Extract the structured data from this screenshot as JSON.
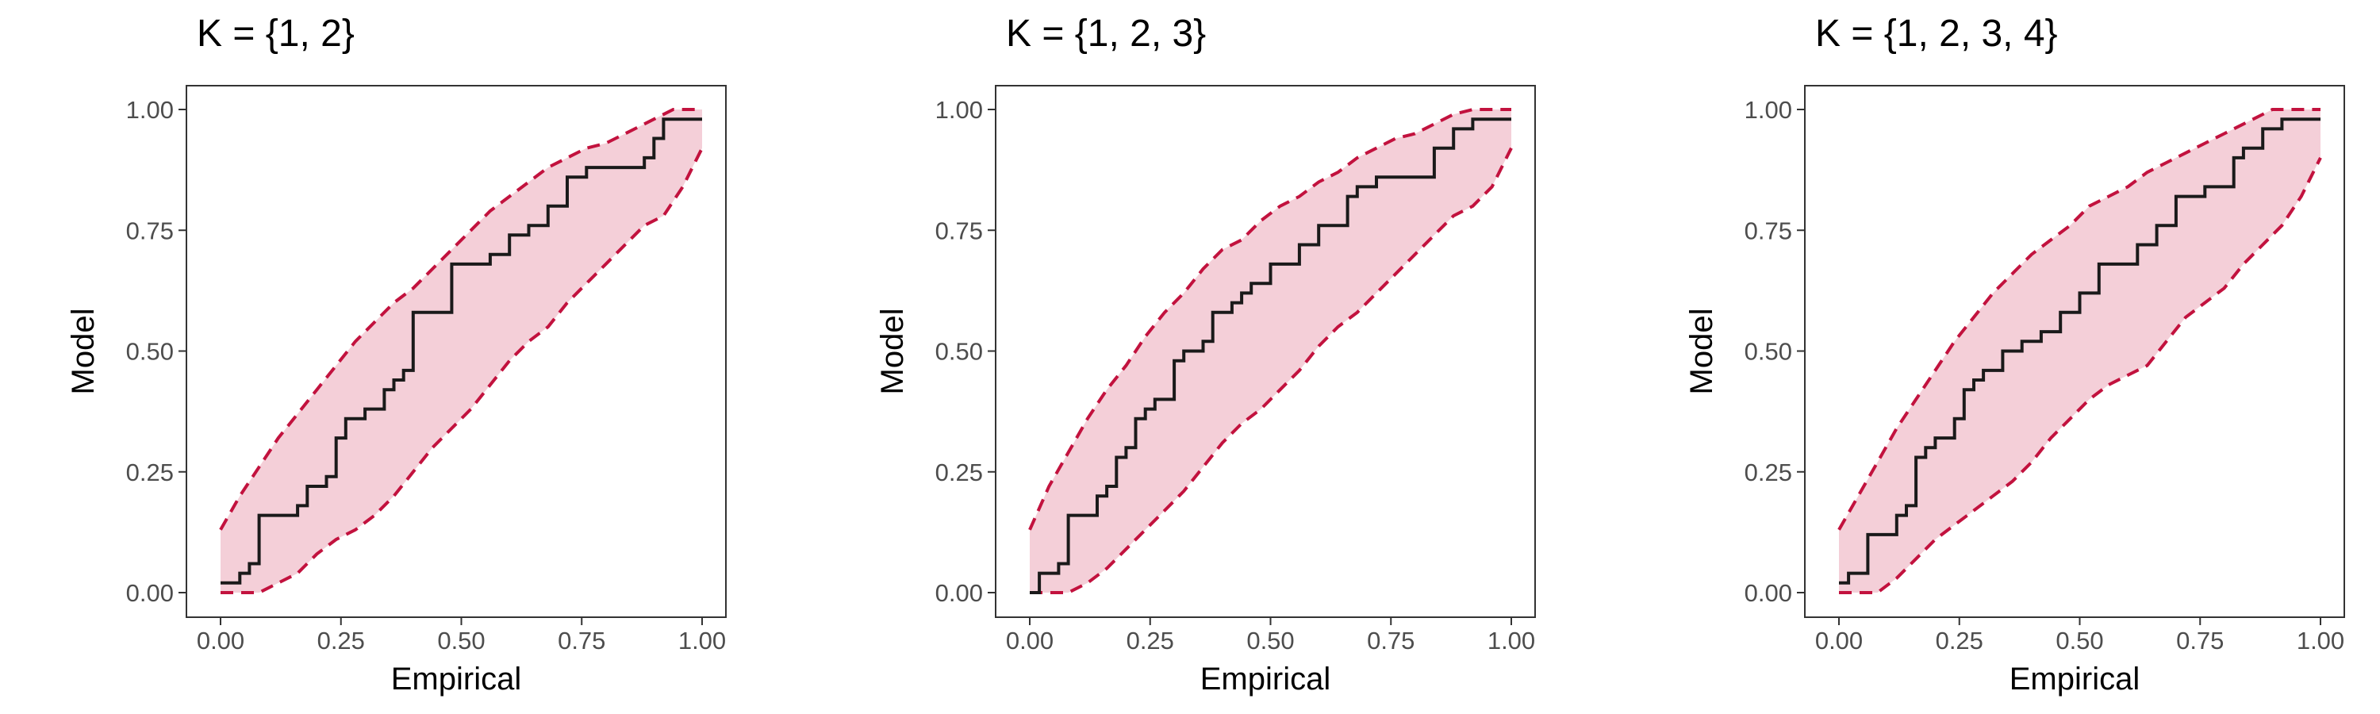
{
  "colors": {
    "band_fill": "#f4cfd8",
    "band_edge": "#c2123e",
    "step_line": "#1a1a1a",
    "axis_text": "#4d4d4d",
    "frame": "#333333"
  },
  "chart_data": [
    {
      "type": "line",
      "title": "K = {1, 2}",
      "xlabel": "Empirical",
      "ylabel": "Model",
      "xlim": [
        0,
        1
      ],
      "ylim": [
        0,
        1
      ],
      "grid": false,
      "xticks": [
        "0.00",
        "0.25",
        "0.50",
        "0.75",
        "1.00"
      ],
      "yticks": [
        "0.00",
        "0.25",
        "0.50",
        "0.75",
        "1.00"
      ],
      "band_upper": {
        "x": [
          0,
          0.04,
          0.08,
          0.12,
          0.16,
          0.2,
          0.24,
          0.28,
          0.32,
          0.36,
          0.4,
          0.44,
          0.48,
          0.52,
          0.56,
          0.6,
          0.64,
          0.68,
          0.72,
          0.76,
          0.8,
          0.84,
          0.88,
          0.9,
          0.94,
          1.0
        ],
        "y": [
          0.13,
          0.2,
          0.26,
          0.32,
          0.37,
          0.42,
          0.47,
          0.52,
          0.56,
          0.6,
          0.63,
          0.67,
          0.71,
          0.75,
          0.79,
          0.82,
          0.85,
          0.88,
          0.9,
          0.92,
          0.93,
          0.95,
          0.97,
          0.98,
          1.0,
          1.0
        ]
      },
      "band_lower": {
        "x": [
          0,
          0.04,
          0.08,
          0.12,
          0.16,
          0.2,
          0.24,
          0.28,
          0.32,
          0.36,
          0.4,
          0.44,
          0.48,
          0.52,
          0.56,
          0.6,
          0.64,
          0.68,
          0.72,
          0.76,
          0.8,
          0.84,
          0.88,
          0.92,
          0.96,
          1.0
        ],
        "y": [
          0.0,
          0.0,
          0.0,
          0.02,
          0.04,
          0.08,
          0.11,
          0.13,
          0.16,
          0.2,
          0.25,
          0.3,
          0.34,
          0.38,
          0.43,
          0.48,
          0.52,
          0.55,
          0.6,
          0.64,
          0.68,
          0.72,
          0.76,
          0.78,
          0.84,
          0.92
        ]
      },
      "step": {
        "x": [
          0,
          0.04,
          0.06,
          0.08,
          0.16,
          0.18,
          0.22,
          0.24,
          0.26,
          0.3,
          0.34,
          0.36,
          0.38,
          0.4,
          0.42,
          0.48,
          0.52,
          0.56,
          0.6,
          0.64,
          0.68,
          0.72,
          0.76,
          0.86,
          0.88,
          0.9,
          0.92,
          1.0
        ],
        "y": [
          0.02,
          0.04,
          0.06,
          0.16,
          0.18,
          0.22,
          0.24,
          0.32,
          0.36,
          0.38,
          0.42,
          0.44,
          0.46,
          0.58,
          0.58,
          0.68,
          0.68,
          0.7,
          0.74,
          0.76,
          0.8,
          0.86,
          0.88,
          0.88,
          0.9,
          0.94,
          0.98,
          0.98
        ]
      }
    },
    {
      "type": "line",
      "title": "K = {1, 2, 3}",
      "xlabel": "Empirical",
      "ylabel": "Model",
      "xlim": [
        0,
        1
      ],
      "ylim": [
        0,
        1
      ],
      "grid": false,
      "xticks": [
        "0.00",
        "0.25",
        "0.50",
        "0.75",
        "1.00"
      ],
      "yticks": [
        "0.00",
        "0.25",
        "0.50",
        "0.75",
        "1.00"
      ],
      "band_upper": {
        "x": [
          0,
          0.04,
          0.08,
          0.12,
          0.16,
          0.2,
          0.24,
          0.28,
          0.32,
          0.36,
          0.4,
          0.44,
          0.48,
          0.52,
          0.56,
          0.6,
          0.64,
          0.68,
          0.72,
          0.76,
          0.8,
          0.84,
          0.88,
          0.92,
          0.96,
          1.0
        ],
        "y": [
          0.13,
          0.22,
          0.29,
          0.36,
          0.42,
          0.47,
          0.53,
          0.58,
          0.62,
          0.67,
          0.71,
          0.73,
          0.77,
          0.8,
          0.82,
          0.85,
          0.87,
          0.9,
          0.92,
          0.94,
          0.95,
          0.97,
          0.99,
          1.0,
          1.0,
          1.0
        ]
      },
      "band_lower": {
        "x": [
          0,
          0.04,
          0.08,
          0.12,
          0.16,
          0.2,
          0.24,
          0.28,
          0.32,
          0.36,
          0.4,
          0.44,
          0.48,
          0.52,
          0.56,
          0.6,
          0.64,
          0.68,
          0.72,
          0.76,
          0.8,
          0.84,
          0.88,
          0.92,
          0.96,
          1.0
        ],
        "y": [
          0.0,
          0.0,
          0.0,
          0.02,
          0.05,
          0.09,
          0.13,
          0.17,
          0.21,
          0.26,
          0.31,
          0.35,
          0.38,
          0.42,
          0.46,
          0.51,
          0.55,
          0.58,
          0.62,
          0.66,
          0.7,
          0.74,
          0.78,
          0.8,
          0.84,
          0.92
        ]
      },
      "step": {
        "x": [
          0,
          0.02,
          0.06,
          0.08,
          0.14,
          0.16,
          0.18,
          0.2,
          0.22,
          0.24,
          0.26,
          0.3,
          0.32,
          0.36,
          0.38,
          0.42,
          0.44,
          0.46,
          0.5,
          0.56,
          0.6,
          0.66,
          0.68,
          0.72,
          0.84,
          0.88,
          0.92,
          1.0
        ],
        "y": [
          0.0,
          0.04,
          0.06,
          0.16,
          0.2,
          0.22,
          0.28,
          0.3,
          0.36,
          0.38,
          0.4,
          0.48,
          0.5,
          0.52,
          0.58,
          0.6,
          0.62,
          0.64,
          0.68,
          0.72,
          0.76,
          0.82,
          0.84,
          0.86,
          0.92,
          0.96,
          0.98,
          0.98
        ]
      }
    },
    {
      "type": "line",
      "title": "K = {1, 2, 3, 4}",
      "xlabel": "Empirical",
      "ylabel": "Model",
      "xlim": [
        0,
        1
      ],
      "ylim": [
        0,
        1
      ],
      "grid": false,
      "xticks": [
        "0.00",
        "0.25",
        "0.50",
        "0.75",
        "1.00"
      ],
      "yticks": [
        "0.00",
        "0.25",
        "0.50",
        "0.75",
        "1.00"
      ],
      "band_upper": {
        "x": [
          0,
          0.04,
          0.08,
          0.12,
          0.16,
          0.2,
          0.24,
          0.28,
          0.32,
          0.36,
          0.4,
          0.44,
          0.48,
          0.52,
          0.56,
          0.6,
          0.64,
          0.68,
          0.72,
          0.76,
          0.8,
          0.84,
          0.88,
          0.9,
          0.94,
          1.0
        ],
        "y": [
          0.13,
          0.2,
          0.27,
          0.34,
          0.4,
          0.46,
          0.52,
          0.57,
          0.62,
          0.66,
          0.7,
          0.73,
          0.76,
          0.8,
          0.82,
          0.84,
          0.87,
          0.89,
          0.91,
          0.93,
          0.95,
          0.97,
          0.99,
          1.0,
          1.0,
          1.0
        ]
      },
      "band_lower": {
        "x": [
          0,
          0.04,
          0.08,
          0.12,
          0.16,
          0.2,
          0.24,
          0.28,
          0.32,
          0.36,
          0.4,
          0.44,
          0.48,
          0.52,
          0.56,
          0.6,
          0.64,
          0.68,
          0.72,
          0.76,
          0.8,
          0.84,
          0.88,
          0.92,
          0.96,
          1.0
        ],
        "y": [
          0.0,
          0.0,
          0.0,
          0.03,
          0.07,
          0.11,
          0.14,
          0.17,
          0.2,
          0.23,
          0.27,
          0.32,
          0.36,
          0.4,
          0.43,
          0.45,
          0.47,
          0.52,
          0.57,
          0.6,
          0.63,
          0.68,
          0.72,
          0.76,
          0.82,
          0.9
        ]
      },
      "step": {
        "x": [
          0,
          0.02,
          0.06,
          0.1,
          0.12,
          0.14,
          0.16,
          0.18,
          0.2,
          0.24,
          0.26,
          0.28,
          0.3,
          0.34,
          0.38,
          0.42,
          0.46,
          0.5,
          0.54,
          0.62,
          0.66,
          0.7,
          0.76,
          0.82,
          0.84,
          0.88,
          0.92,
          0.96,
          1.0
        ],
        "y": [
          0.02,
          0.04,
          0.12,
          0.12,
          0.16,
          0.18,
          0.28,
          0.3,
          0.32,
          0.36,
          0.42,
          0.44,
          0.46,
          0.5,
          0.52,
          0.54,
          0.58,
          0.62,
          0.68,
          0.72,
          0.76,
          0.82,
          0.84,
          0.9,
          0.92,
          0.96,
          0.98,
          0.98,
          0.98
        ]
      }
    }
  ]
}
